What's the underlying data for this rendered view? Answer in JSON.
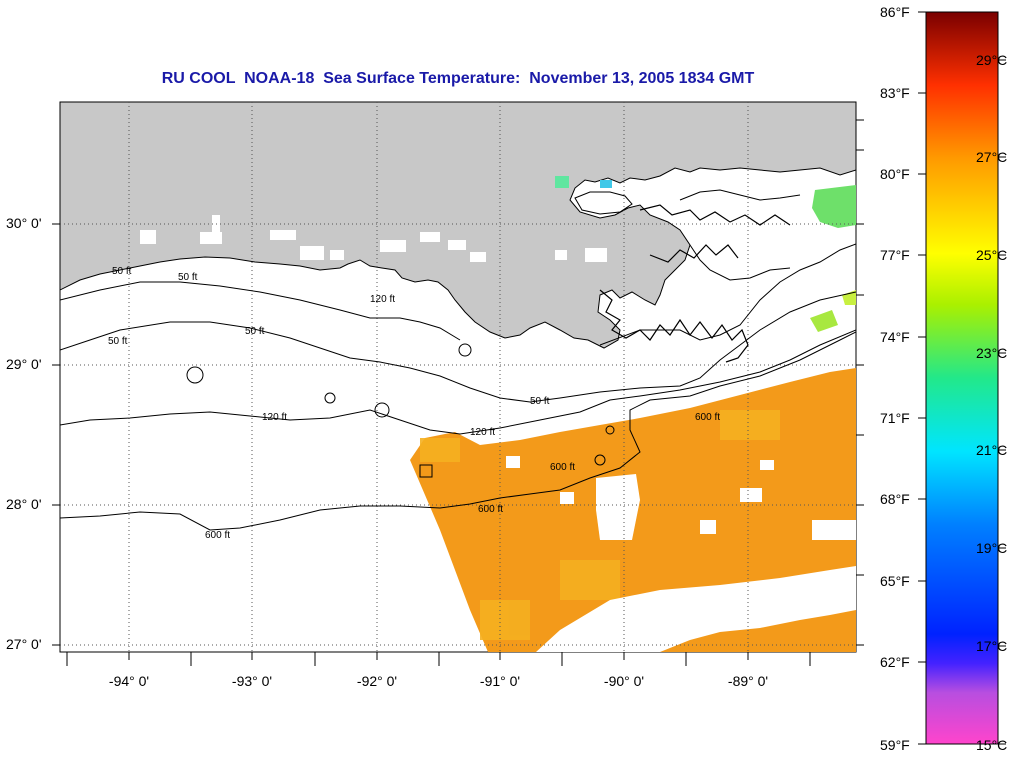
{
  "title": "RU COOL  NOAA-18  Sea Surface Temperature:  November 13, 2005 1834 GMT",
  "map": {
    "lat_labels": [
      "30° 0'",
      "29° 0'",
      "28° 0'",
      "27° 0'"
    ],
    "lon_labels": [
      "-94° 0'",
      "-93° 0'",
      "-92° 0'",
      "-91° 0'",
      "-90° 0'",
      "-89° 0'"
    ],
    "contour_labels": [
      "50 ft",
      "120 ft",
      "600 ft"
    ],
    "colors": {
      "land": "#c8c8c8",
      "no_data": "#ffffff",
      "sst_warm": "#f39a1a",
      "sst_cool": "#5fe06a",
      "title": "#1a1aa8",
      "contour": "#000000"
    }
  },
  "colorbar": {
    "fahrenheit_labels": [
      "86°F",
      "83°F",
      "80°F",
      "77°F",
      "74°F",
      "71°F",
      "68°F",
      "65°F",
      "62°F",
      "59°F"
    ],
    "celsius_labels": [
      "29°C",
      "27°C",
      "25°C",
      "23°C",
      "21°C",
      "19°C",
      "17°C",
      "15°C"
    ]
  }
}
